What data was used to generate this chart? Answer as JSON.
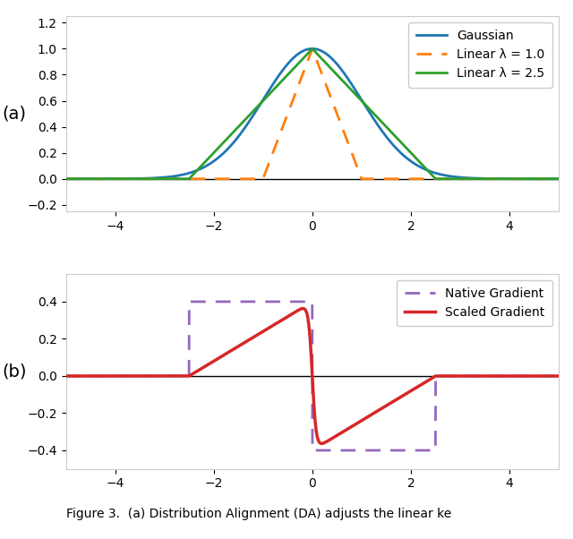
{
  "title_a": "(a)",
  "title_b": "(b)",
  "xlim": [
    -5,
    5
  ],
  "ylim_a": [
    -0.25,
    1.25
  ],
  "ylim_b": [
    -0.5,
    0.55
  ],
  "gaussian_color": "#1f77b4",
  "linear1_color": "#ff7f0e",
  "linear25_color": "#2ca02c",
  "native_grad_color": "#9467bd",
  "scaled_grad_color": "#d62728",
  "legend_a": [
    "Gaussian",
    "Linear λ = 1.0",
    "Linear λ = 2.5"
  ],
  "legend_b": [
    "Native Gradient",
    "Scaled Gradient"
  ],
  "sigma_gaussian": 1.0,
  "lambda1": 1.0,
  "lambda25": 2.5,
  "background_color": "#ffffff",
  "yticks_a": [
    -0.2,
    0.0,
    0.2,
    0.4,
    0.6,
    0.8,
    1.0,
    1.2
  ],
  "yticks_b": [
    -0.4,
    -0.2,
    0.0,
    0.2,
    0.4
  ],
  "xticks": [
    -4,
    -2,
    0,
    2,
    4
  ],
  "sigma_sg": 0.35,
  "scale_sg": 0.4,
  "caption": "Figure 3.  (a) Distribution Alignment (DA) adjusts the linear ke"
}
